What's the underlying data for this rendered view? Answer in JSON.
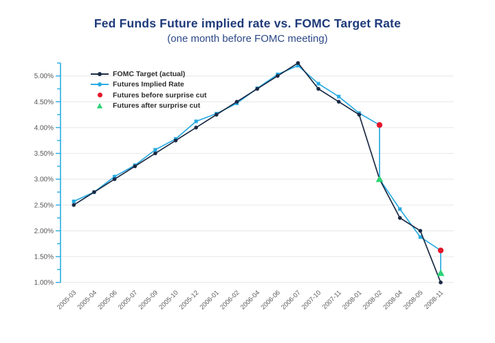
{
  "chart_data": {
    "type": "line",
    "title": "Fed Funds Future implied rate vs. FOMC Target Rate",
    "subtitle": "(one month before FOMC meeting)",
    "categories": [
      "2005-03",
      "2005-04",
      "2005-06",
      "2005-07",
      "2005-09",
      "2005-10",
      "2005-12",
      "2006-01",
      "2006-02",
      "2006-04",
      "2006-06",
      "2006-07",
      "2007-10",
      "2007-11",
      "2008-01",
      "2008-02",
      "2008-04",
      "2008-05",
      "2008-11"
    ],
    "series": [
      {
        "name": "FOMC Target (actual)",
        "color": "#1a2a44",
        "marker": "circle",
        "values": [
          2.5,
          2.75,
          3.0,
          3.25,
          3.5,
          3.75,
          4.0,
          4.25,
          4.5,
          4.75,
          5.0,
          5.25,
          4.75,
          4.5,
          4.25,
          3.0,
          2.25,
          2.0,
          1.0
        ]
      },
      {
        "name": "Futures Implied Rate",
        "color": "#29abe2",
        "marker": "square",
        "values": [
          2.57,
          2.75,
          3.05,
          3.27,
          3.57,
          3.78,
          4.12,
          4.27,
          4.47,
          4.76,
          5.03,
          5.2,
          4.85,
          4.6,
          4.28,
          null,
          2.42,
          1.88,
          null
        ]
      }
    ],
    "surprise_points": [
      {
        "category": "2008-02",
        "index": 15,
        "before": 4.05,
        "after": 3.0
      },
      {
        "category": "2008-11",
        "index": 18,
        "before": 1.62,
        "after": 1.18
      }
    ],
    "legend": [
      {
        "label": "FOMC Target (actual)",
        "type": "line-dot",
        "color": "#1a2a44"
      },
      {
        "label": "Futures Implied Rate",
        "type": "line-dot",
        "color": "#29abe2"
      },
      {
        "label": "Futures before surprise cut",
        "type": "dot",
        "color": "#e4172b"
      },
      {
        "label": "Futures after surprise cut",
        "type": "triangle",
        "color": "#2ed378"
      }
    ],
    "y_axis": {
      "labels": [
        "1.00%",
        "1.50%",
        "2.00%",
        "2.50%",
        "3.00%",
        "3.50%",
        "4.00%",
        "4.50%",
        "5.00%"
      ],
      "min": 1.0,
      "max": 5.25,
      "tick_step": 0.25,
      "label_step": 0.5,
      "axis_color": "#29abe2",
      "label_color": "#555555"
    },
    "x_axis": {
      "label_color": "#5c5c5c",
      "label_rotation": -45
    },
    "grid": true,
    "grid_color": "#e6e6e6",
    "ylim": [
      1.0,
      5.25
    ],
    "legend_position": "upper-left-inside",
    "colors_before_after": {
      "before": "#e4172b",
      "after": "#2ed378",
      "connector": "#29abe2"
    }
  }
}
